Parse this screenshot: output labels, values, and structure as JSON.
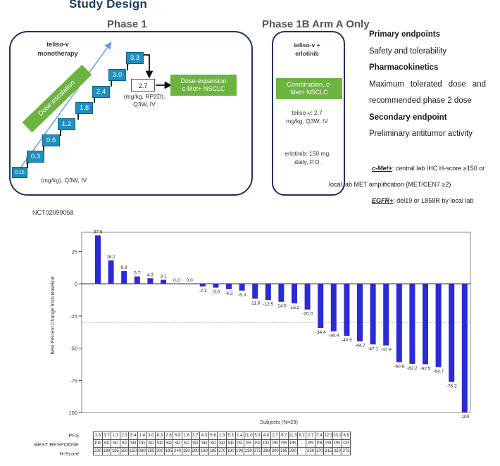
{
  "title": "Study Design",
  "phase1": {
    "label": "Phase 1",
    "monotherapy": "teliso-v monotherapy",
    "escalation_label": "Dose-escalation",
    "doses": [
      "0.15",
      "0.3",
      "0.6",
      "1.2",
      "1.8",
      "2.4",
      "3.0",
      "3.3"
    ],
    "units": "(mg/kg), Q3W, IV",
    "selected_dose": "2.7",
    "selected_dose_note": "(mg/kg, RP2D), Q3W, IV",
    "expansion": "Dose-expansion c-Met+ NSCLC"
  },
  "phase1b": {
    "label": "Phase 1B Arm A Only",
    "drugs": "teliso-v + erlotinib",
    "combination": "Combination, c-Met+ NSCLC",
    "teliso_dose": "teliso-v: 2.7 mg/kg, Q3W, IV",
    "erlotinib_dose": "erlotinib: 150 mg, daily, P.O."
  },
  "endpoints": {
    "primary_title": "Primary endpoints",
    "primary": "Safety and tolerability",
    "pk_title": "Pharmacokinetics",
    "pk_line1": "Maximum tolerated dose and",
    "pk_line2": "recommended phase 2 dose",
    "secondary_title": "Secondary endpoint",
    "secondary": "Preliminary antitumor activity"
  },
  "definitions": {
    "cmet_label": "c-Met+",
    "cmet_text1": ": central lab IHC H-score ≥150 or",
    "cmet_text2": "local lab MET amplification (MET/CEN7 ≥2)",
    "egfr_label": "EGFR+",
    "egfr_text": ": del19 or L858R by local lab"
  },
  "nct": "NCT02099058",
  "chart_data": {
    "type": "bar",
    "xlabel": "Subjects (N=29)",
    "ylabel": "Best Percent Change from Baseline",
    "ylim": [
      -100,
      40
    ],
    "yticks": [
      25,
      0,
      -25,
      -50,
      -75,
      -100
    ],
    "reference_line": -30,
    "values": [
      37.6,
      18.2,
      9.9,
      5.7,
      4.3,
      3.1,
      0.0,
      0.0,
      -2.1,
      -3.0,
      -4.2,
      -5.3,
      -11.6,
      -12.5,
      -14.0,
      -15.2,
      -20.0,
      -34.4,
      -36.9,
      -40.5,
      -44.7,
      -47.1,
      -47.9,
      -60.9,
      -62.2,
      -62.5,
      -64.7,
      -76.3,
      -100
    ],
    "labels": [
      "37.6",
      "18.2",
      "9.9",
      "5.7",
      "4.3",
      "3.1",
      "0.0",
      "0.0",
      "-2.1",
      "-3.0",
      "-4.2",
      "-5.3",
      "-11.6",
      "-12.5",
      "-14.0",
      "-15.2",
      "-20.0",
      "-34.4",
      "-36.9",
      "-40.5",
      "-44.7",
      "-47.1",
      "-47.9",
      "-60.9",
      "-62.2",
      "-62.5",
      "-64.7",
      "-76.3",
      "-100"
    ],
    "bar_color": "#2b2bd6"
  },
  "table": {
    "row_labels": [
      "PFS",
      "BEST RESPONSE",
      "H-Score"
    ],
    "pfs": [
      "1.3",
      "3.7",
      "1.3",
      "2.3",
      "5.4",
      "1.4",
      "3.0",
      "8.3",
      "2.8",
      "6.8",
      "1.6",
      "3.7",
      "4.3",
      "5.6",
      "1.3",
      "5.3",
      "1.4",
      "11.0",
      "5.3",
      "4.0",
      "2.7",
      "6.7",
      "11.3",
      "8.2",
      "2.7",
      "7.4",
      "12.3",
      "10.2",
      "6.9"
    ],
    "response": [
      "PD",
      "SD",
      "SD",
      "SD",
      "SD",
      "PD",
      "SD",
      "SD",
      "SD",
      "SD",
      "SD",
      "SD",
      "SD",
      "SD",
      "SD",
      "SD",
      "PD",
      "PR",
      "PD",
      "PD",
      "PR",
      "PR",
      "PR",
      "-",
      "PR",
      "PR",
      "PR",
      "PR",
      "CR"
    ],
    "hscore": [
      "230",
      "180",
      "185",
      "150",
      "150",
      "280",
      "255",
      "300",
      "195",
      "240",
      "150",
      "290",
      "180",
      "185",
      "270",
      "190",
      "190",
      "250",
      "275",
      "288",
      "300",
      "295",
      "290",
      "-",
      "250",
      "170",
      "215",
      "250",
      "275"
    ]
  }
}
